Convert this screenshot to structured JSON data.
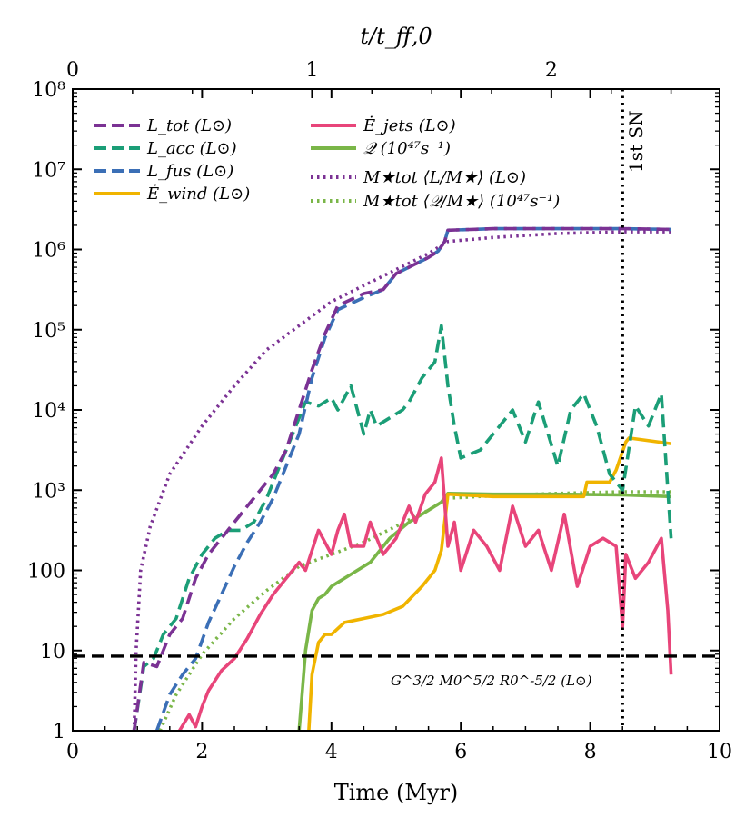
{
  "chart_data": {
    "type": "line",
    "xlabel": "Time (Myr)",
    "top_xlabel": "t/t_ff,0",
    "xlim": [
      0,
      10
    ],
    "ylim_log10": [
      0,
      8
    ],
    "yscale": "log",
    "x_tick_labels": [
      "0",
      "2",
      "4",
      "6",
      "8",
      "10"
    ],
    "top_tick_labels": [
      "0",
      "1",
      "2"
    ],
    "top_axis_myr_per_unit": 3.7,
    "y_tick_labels": [
      {
        "exp": 0,
        "text": "1"
      },
      {
        "exp": 1,
        "text": "10"
      },
      {
        "exp": 2,
        "text": "100"
      },
      {
        "exp": 3,
        "text": "10³"
      },
      {
        "exp": 4,
        "text": "10⁴"
      },
      {
        "exp": 5,
        "text": "10⁵"
      },
      {
        "exp": 6,
        "text": "10⁶"
      },
      {
        "exp": 7,
        "text": "10⁷"
      },
      {
        "exp": 8,
        "text": "10⁸"
      }
    ],
    "legend_position": "top-left",
    "series": [
      {
        "name": "L_tot (L⊙)",
        "label": "L_tot (L⊙)",
        "color": "#7b3294",
        "style": "dashed",
        "x": [
          0.95,
          1.1,
          1.3,
          1.5,
          1.7,
          1.9,
          2.1,
          2.3,
          2.5,
          2.7,
          2.9,
          3.1,
          3.3,
          3.5,
          3.7,
          3.9,
          4.1,
          4.5,
          4.8,
          5.0,
          5.5,
          5.65,
          5.75,
          5.8,
          6.5,
          7.5,
          8.5,
          9.25
        ],
        "log10": [
          0.0,
          0.85,
          0.8,
          1.2,
          1.4,
          1.9,
          2.2,
          2.4,
          2.6,
          2.8,
          3.0,
          3.2,
          3.5,
          4.0,
          4.5,
          4.95,
          5.3,
          5.45,
          5.5,
          5.7,
          5.9,
          5.98,
          6.1,
          6.24,
          6.26,
          6.26,
          6.26,
          6.25
        ]
      },
      {
        "name": "L_acc (L⊙)",
        "label": "L_acc (L⊙)",
        "color": "#1b9e77",
        "style": "dashed",
        "x": [
          0.95,
          1.1,
          1.25,
          1.4,
          1.6,
          1.8,
          2.0,
          2.2,
          2.4,
          2.6,
          2.8,
          3.0,
          3.2,
          3.4,
          3.6,
          3.8,
          4.0,
          4.1,
          4.3,
          4.5,
          4.6,
          4.7,
          4.9,
          5.1,
          5.2,
          5.4,
          5.5,
          5.6,
          5.7,
          5.8,
          5.9,
          6.0,
          6.3,
          6.5,
          6.8,
          7.0,
          7.2,
          7.5,
          7.7,
          7.9,
          8.1,
          8.3,
          8.5,
          8.7,
          8.9,
          9.1,
          9.25
        ],
        "log10": [
          0.0,
          0.8,
          0.9,
          1.2,
          1.4,
          1.9,
          2.2,
          2.4,
          2.5,
          2.5,
          2.6,
          2.9,
          3.3,
          3.7,
          4.1,
          4.05,
          4.15,
          4.0,
          4.3,
          3.7,
          4.0,
          3.8,
          3.9,
          4.0,
          4.1,
          4.4,
          4.5,
          4.6,
          5.05,
          4.3,
          3.8,
          3.4,
          3.5,
          3.7,
          4.0,
          3.6,
          4.1,
          3.3,
          4.0,
          4.2,
          3.8,
          3.2,
          3.0,
          4.05,
          3.8,
          4.2,
          2.4
        ]
      },
      {
        "name": "L_fus (L⊙)",
        "label": "L_fus (L⊙)",
        "color": "#3b6fb6",
        "style": "dashed",
        "x": [
          1.3,
          1.5,
          1.7,
          1.9,
          2.1,
          2.3,
          2.5,
          2.7,
          2.9,
          3.1,
          3.3,
          3.5,
          3.7,
          3.9,
          4.1,
          4.5,
          4.8,
          5.0,
          5.5,
          5.65,
          5.75,
          5.8,
          6.5,
          7.5,
          8.5,
          9.25
        ],
        "log10": [
          0.0,
          0.45,
          0.7,
          0.9,
          1.35,
          1.7,
          2.05,
          2.35,
          2.6,
          2.9,
          3.3,
          3.7,
          4.4,
          4.9,
          5.25,
          5.4,
          5.5,
          5.7,
          5.9,
          5.98,
          6.1,
          6.24,
          6.26,
          6.26,
          6.26,
          6.25
        ]
      },
      {
        "name": "Ė_wind (L⊙)",
        "label": "Ė_wind (L⊙)",
        "color": "#f0b400",
        "style": "solid",
        "x": [
          3.65,
          3.7,
          3.8,
          3.9,
          4.0,
          4.2,
          4.5,
          4.8,
          5.1,
          5.4,
          5.6,
          5.7,
          5.75,
          5.8,
          6.5,
          7.0,
          7.5,
          7.9,
          7.95,
          8.3,
          8.4,
          8.55,
          8.6,
          9.25
        ],
        "log10": [
          0.0,
          0.7,
          1.1,
          1.2,
          1.2,
          1.35,
          1.4,
          1.45,
          1.55,
          1.8,
          2.0,
          2.25,
          2.6,
          2.95,
          2.92,
          2.92,
          2.92,
          2.92,
          3.1,
          3.1,
          3.25,
          3.6,
          3.65,
          3.58
        ]
      },
      {
        "name": "Ė_jets (L⊙)",
        "label": "Ė_jets (L⊙)",
        "color": "#e8457a",
        "style": "solid",
        "x": [
          1.65,
          1.8,
          1.9,
          2.0,
          2.1,
          2.3,
          2.5,
          2.7,
          2.9,
          3.1,
          3.3,
          3.5,
          3.6,
          3.8,
          4.0,
          4.1,
          4.2,
          4.3,
          4.5,
          4.6,
          4.8,
          5.0,
          5.2,
          5.3,
          5.45,
          5.6,
          5.7,
          5.8,
          5.9,
          6.0,
          6.2,
          6.4,
          6.6,
          6.8,
          7.0,
          7.2,
          7.4,
          7.6,
          7.8,
          8.0,
          8.2,
          8.4,
          8.5,
          8.55,
          8.7,
          8.9,
          9.1,
          9.2,
          9.25
        ],
        "log10": [
          0.0,
          0.2,
          0.05,
          0.3,
          0.5,
          0.75,
          0.9,
          1.15,
          1.45,
          1.7,
          1.9,
          2.1,
          2.0,
          2.5,
          2.2,
          2.5,
          2.7,
          2.3,
          2.3,
          2.6,
          2.2,
          2.4,
          2.8,
          2.6,
          2.95,
          3.1,
          3.4,
          2.3,
          2.6,
          2.0,
          2.5,
          2.3,
          2.0,
          2.8,
          2.3,
          2.5,
          2.0,
          2.7,
          1.8,
          2.3,
          2.4,
          2.3,
          1.3,
          2.2,
          1.9,
          2.1,
          2.4,
          1.5,
          0.7
        ]
      },
      {
        "name": "Q (10⁴⁷ s⁻¹)",
        "label": "𝒬 (10⁴⁷s⁻¹)",
        "color": "#7ab648",
        "style": "solid",
        "x": [
          3.5,
          3.55,
          3.6,
          3.7,
          3.8,
          3.9,
          4.0,
          4.1,
          4.3,
          4.6,
          4.9,
          5.2,
          5.5,
          5.7,
          5.8,
          6.5,
          7.5,
          8.5,
          9.25
        ],
        "log10": [
          0.0,
          0.5,
          1.0,
          1.5,
          1.65,
          1.7,
          1.8,
          1.85,
          1.95,
          2.1,
          2.4,
          2.6,
          2.75,
          2.85,
          2.96,
          2.95,
          2.95,
          2.94,
          2.92
        ]
      },
      {
        "name": "M★tot ⟨L/M★⟩ (L⊙)",
        "label": "M★tot ⟨L/M★⟩ (L⊙)",
        "color": "#7b3294",
        "style": "dotted",
        "x": [
          0.95,
          0.98,
          1.05,
          1.2,
          1.5,
          2.0,
          2.5,
          3.0,
          3.5,
          4.0,
          4.5,
          5.0,
          5.5,
          5.8,
          6.5,
          7.5,
          8.5,
          9.25
        ],
        "log10": [
          0.0,
          1.0,
          2.0,
          2.55,
          3.2,
          3.8,
          4.3,
          4.75,
          5.05,
          5.35,
          5.55,
          5.75,
          5.95,
          6.1,
          6.15,
          6.2,
          6.22,
          6.22
        ]
      },
      {
        "name": "M★tot ⟨Q/M★⟩ (10⁴⁷ s⁻¹)",
        "label": "M★tot ⟨𝒬/M★⟩ (10⁴⁷s⁻¹)",
        "color": "#7ab648",
        "style": "dotted",
        "x": [
          1.35,
          1.6,
          2.0,
          2.5,
          3.0,
          3.5,
          4.0,
          4.5,
          5.0,
          5.5,
          5.8,
          6.5,
          7.5,
          8.5,
          9.25
        ],
        "log10": [
          0.0,
          0.45,
          0.95,
          1.4,
          1.75,
          2.05,
          2.2,
          2.35,
          2.55,
          2.75,
          2.9,
          2.93,
          2.96,
          2.98,
          2.98
        ]
      }
    ],
    "reference_line": {
      "label": "G^3/2 M0^5/2 R0^-5/2 (L⊙)",
      "log10": 0.93,
      "color": "#000000",
      "style": "dashed"
    },
    "vertical_line": {
      "label": "1st SN",
      "x": 8.5,
      "color": "#000000",
      "style": "dotted"
    }
  }
}
